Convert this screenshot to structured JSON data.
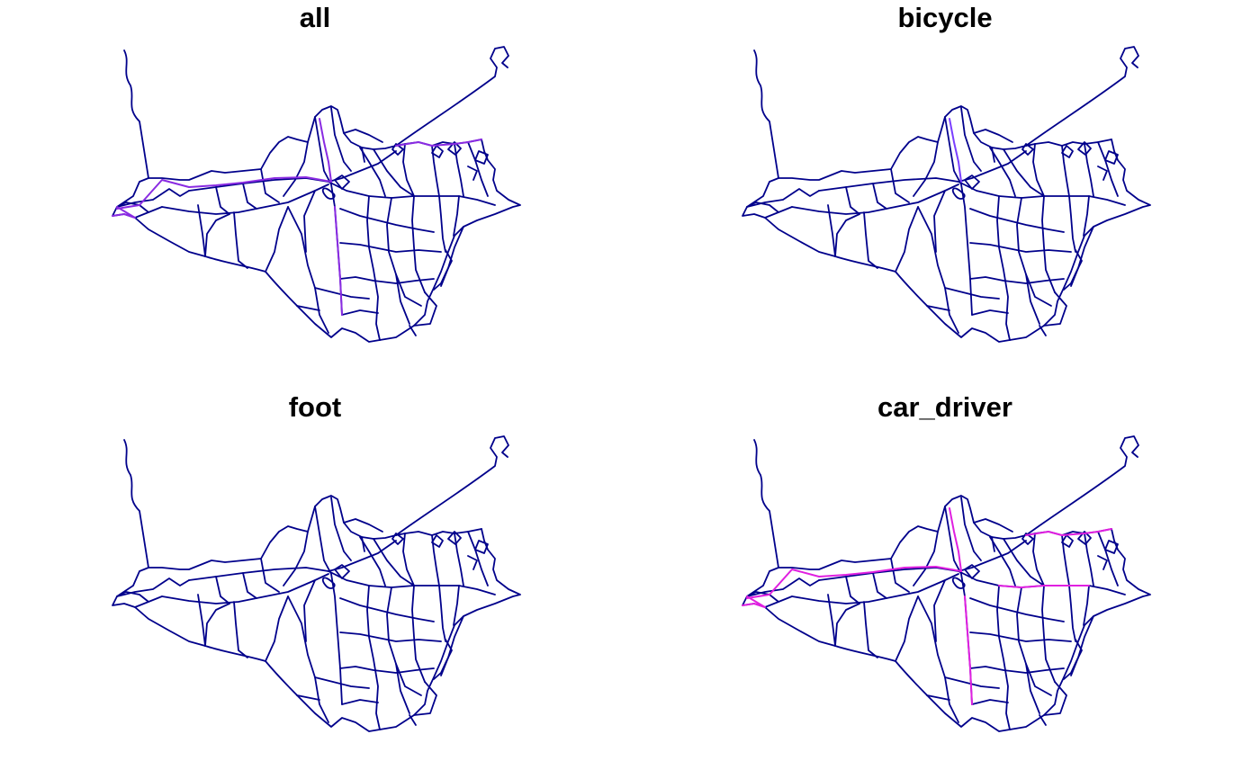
{
  "panels": [
    {
      "title": "all",
      "highlight_color": "#8a2be2",
      "highlighted_routes": [
        "west-east",
        "north-spur",
        "northeast-coast",
        "south-spur",
        "west-tip"
      ]
    },
    {
      "title": "bicycle",
      "highlight_color": "#7b3fff",
      "highlighted_routes": [
        "north-spur"
      ]
    },
    {
      "title": "foot",
      "highlight_color": "#1a1acd",
      "highlighted_routes": []
    },
    {
      "title": "car_driver",
      "highlight_color": "#e020e0",
      "highlighted_routes": [
        "west-east",
        "north-spur",
        "south-spur",
        "northeast-coast",
        "east-link",
        "west-tip"
      ]
    }
  ],
  "colors": {
    "base_network": "#00008b",
    "mid_flow": "#4b2bff",
    "background": "#ffffff"
  },
  "legend": "none"
}
